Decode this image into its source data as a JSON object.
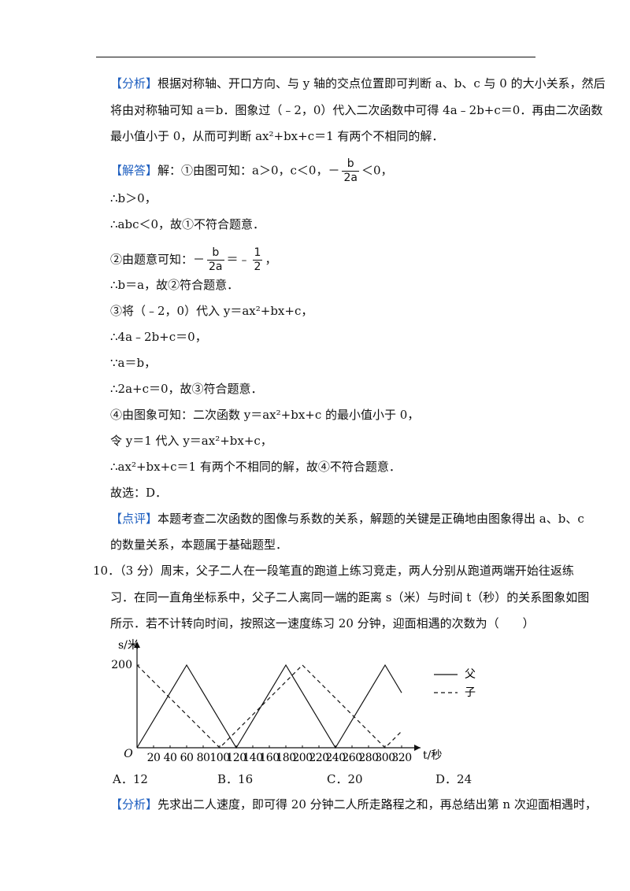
{
  "analysis": {
    "label": "【分析】",
    "lines": [
      [
        "根据对称轴、开口方向、与 y 轴的交点位置即可判断 a、b、c 与 0 的大小关系，然后"
      ],
      [
        "将由对称轴可知 a＝b．图象过（﹣2，0）代入二次函数中可得 4a﹣2b+c＝0．再由二次函数"
      ],
      [
        "最小值小于 0，从而可判断 ax²+bx+c＝1 有两个不相同的解．"
      ]
    ]
  },
  "solution": {
    "label": "【解答】",
    "lines": [
      [
        "解：①由图可知：a＞0，c＜0，－",
        {
          "num": "b",
          "den": "2a"
        },
        "＜0，"
      ],
      [
        "∴b＞0，"
      ],
      [
        "∴abc＜0，故①不符合题意．"
      ],
      [
        "②由题意可知：－",
        {
          "num": "b",
          "den": "2a"
        },
        "＝﹣",
        {
          "num": "1",
          "den": "2"
        },
        "，"
      ],
      [
        "∴b＝a，故②符合题意．"
      ],
      [
        "③将（﹣2，0）代入 y＝ax²+bx+c，"
      ],
      [
        "∴4a﹣2b+c＝0，"
      ],
      [
        "∵a＝b，"
      ],
      [
        "∴2a+c＝0，故③符合题意．"
      ],
      [
        "④由图象可知：二次函数 y＝ax²+bx+c 的最小值小于 0，"
      ],
      [
        "令 y＝1 代入 y＝ax²+bx+c，"
      ],
      [
        "∴ax²+bx+c＝1 有两个不相同的解，故④不符合题意．"
      ],
      [
        "故选：D．"
      ]
    ]
  },
  "comment": {
    "label": "【点评】",
    "lines": [
      [
        "本题考查二次函数的图像与系数的关系，解题的关键是正确地由图象得出 a、b、c"
      ],
      [
        "的数量关系，本题属于基础题型．"
      ]
    ]
  },
  "question": {
    "number": "10．",
    "lines": [
      [
        "（3 分）周末，父子二人在一段笔直的跑道上练习竞走，两人分别从跑道两端开始往返练"
      ],
      [
        "习．在同一直角坐标系中，父子二人离同一端的距离 s（米）与时间 t（秒）的关系图象如图"
      ],
      [
        "所示．若不计转向时间，按照这一速度练习 20 分钟，迎面相遇的次数为（　　）"
      ]
    ],
    "figure": {
      "type": "line",
      "y_label": "s/米",
      "x_label": "t/秒",
      "origin": "O",
      "xlim": [
        0,
        340
      ],
      "ylim": [
        0,
        220
      ],
      "xticks": [
        20,
        40,
        60,
        80,
        100,
        120,
        140,
        160,
        180,
        200,
        220,
        240,
        260,
        280,
        300,
        320
      ],
      "yticks": [
        200
      ],
      "series": [
        {
          "name": "父",
          "style": "solid",
          "x": [
            0,
            60,
            120,
            180,
            240,
            300,
            320
          ],
          "values": [
            0,
            200,
            0,
            200,
            0,
            200,
            133
          ]
        },
        {
          "name": "子",
          "style": "dashed",
          "x": [
            0,
            100,
            200,
            300,
            320
          ],
          "values": [
            200,
            0,
            200,
            0,
            40
          ]
        }
      ]
    },
    "options": [
      "A．12",
      "B．16",
      "C．20",
      "D．24"
    ]
  },
  "analysis2": {
    "label": "【分析】",
    "lines": [
      [
        "先求出二人速度，即可得 20 分钟二人所走路程之和，再总结出第 n 次迎面相遇时，"
      ]
    ]
  }
}
